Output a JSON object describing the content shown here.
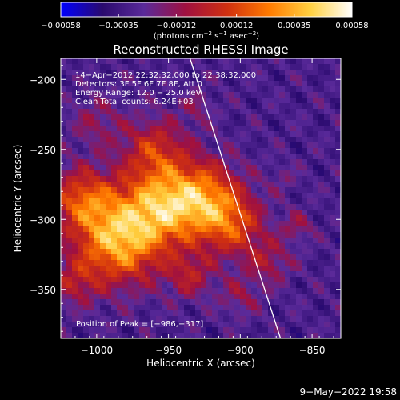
{
  "chart_data": {
    "type": "heatmap",
    "title": "Reconstructed RHESSI Image",
    "xlabel": "Heliocentric X (arcsec)",
    "ylabel": "Heliocentric Y (arcsec)",
    "xlim": [
      -1025,
      -830
    ],
    "ylim": [
      -385,
      -185
    ],
    "xticks": [
      -1000,
      -950,
      -900,
      -850
    ],
    "yticks": [
      -200,
      -250,
      -300,
      -350
    ],
    "xtick_labels": [
      "−1000",
      "−950",
      "−900",
      "−850"
    ],
    "ytick_labels": [
      "−200",
      "−250",
      "−300",
      "−350"
    ],
    "colorbar": {
      "range": [
        -0.00058,
        0.00058
      ],
      "ticks": [
        -0.00058,
        -0.00035,
        -0.00012,
        0.00012,
        0.00035,
        0.00058
      ],
      "tick_labels": [
        "−0.00058",
        "−0.00035",
        "−0.00012",
        "0.00012",
        "0.00035",
        "0.00058"
      ],
      "unit_prefix": "(photons cm",
      "unit_exp1": "−2",
      "unit_mid": " s",
      "unit_exp2": "−1",
      "unit_suffix": " asec",
      "unit_exp3": "−2",
      "unit_close": ")",
      "colors": [
        "#0000ff",
        "#2a0a6e",
        "#5a2a9a",
        "#a01040",
        "#d03010",
        "#ff7a00",
        "#ffd040",
        "#ffffff"
      ]
    },
    "annotations": [
      "14−Apr−2012 22:32:32.000 to 22:38:32.000",
      "Detectors: 3F 5F 6F 7F 8F, Att 0",
      "Energy Range: 12.0 − 25.0 keV",
      "Clean    Total counts: 6.24E+03"
    ],
    "peak_label": "Position of Peak = [−986,−317]",
    "peak": [
      -986,
      -317
    ],
    "limb_line": [
      [
        -935,
        -185
      ],
      [
        -872,
        -385
      ]
    ],
    "grid": false
  },
  "footer": {
    "date": "9−May−2022 19:58"
  }
}
